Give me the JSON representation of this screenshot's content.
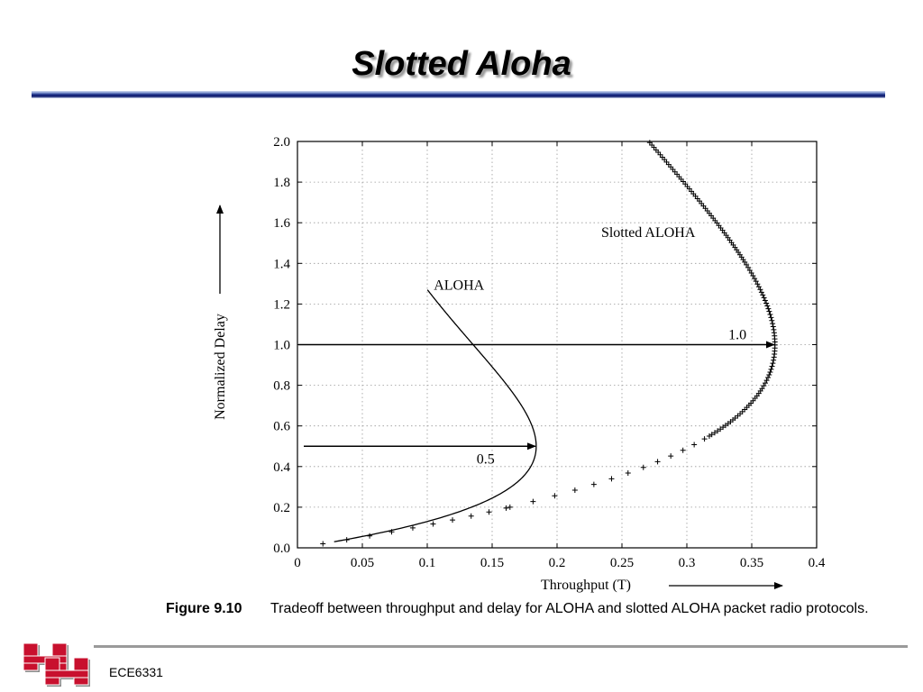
{
  "slide": {
    "title": "Slotted Aloha",
    "footer": "ECE6331"
  },
  "figure": {
    "label": "Figure 9.10",
    "caption": "Tradeoff between throughput and delay for ALOHA and slotted ALOHA packet radio protocols."
  },
  "colors": {
    "title_rule": "#1c2e86",
    "logo_red": "#c8102e",
    "footer_rule": "#9a9a9a"
  },
  "logo": {
    "icon": "uh-logo-icon"
  },
  "chart_data": {
    "type": "line",
    "title": "",
    "xlabel": "Throughput (T)",
    "ylabel": "Normalized Delay",
    "xlim": [
      0,
      0.4
    ],
    "ylim": [
      0,
      2.0
    ],
    "xticks": [
      "0",
      "0.05",
      "0.1",
      "0.15",
      "0.2",
      "0.25",
      "0.3",
      "0.35",
      "0.4"
    ],
    "yticks": [
      "0.0",
      "0.2",
      "0.4",
      "0.6",
      "0.8",
      "1.0",
      "1.2",
      "1.4",
      "1.6",
      "1.8",
      "2.0"
    ],
    "grid": true,
    "series": [
      {
        "name": "ALOHA",
        "style": "solid line",
        "g_start": 0.03,
        "g_end": 1.27
      },
      {
        "name": "Slotted ALOHA",
        "style": "plus markers",
        "g_start": 0.02,
        "g_end": 2.0
      }
    ],
    "annotations": [
      {
        "text": "0.5",
        "arrow_y": 0.5,
        "arrow_to_x": 0.184
      },
      {
        "text": "1.0",
        "arrow_y": 1.0,
        "arrow_to_x": 0.368
      }
    ]
  }
}
